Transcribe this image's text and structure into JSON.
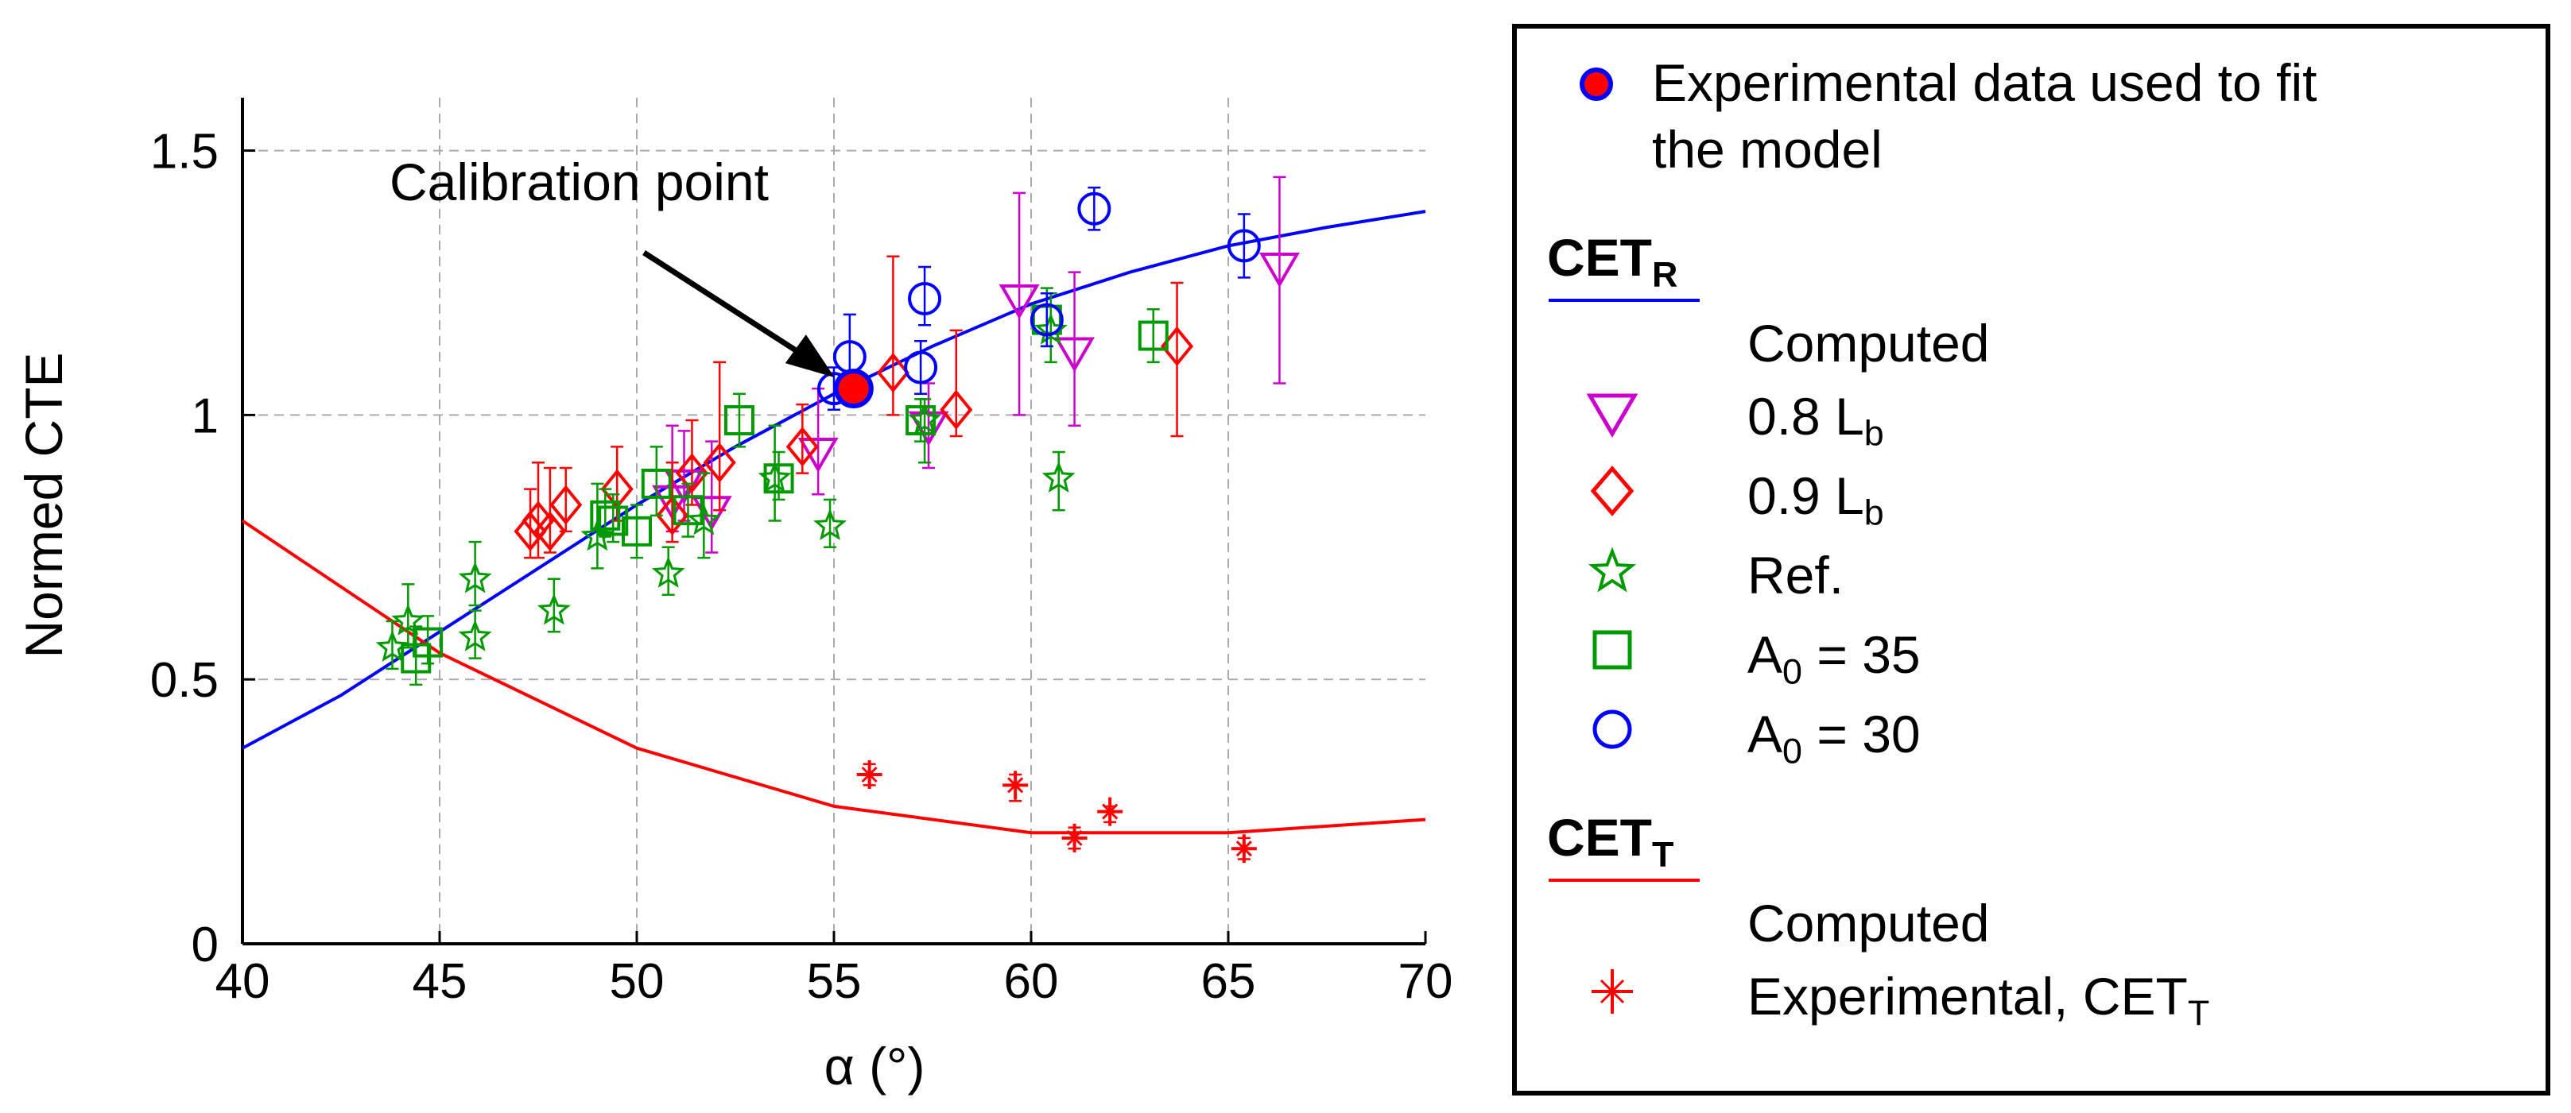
{
  "chart_data": {
    "type": "scatter",
    "xlabel": "α (°)",
    "ylabel": "Normed CTE",
    "xlim": [
      40,
      70
    ],
    "ylim": [
      0,
      1.6
    ],
    "xticks": [
      "40",
      "45",
      "50",
      "55",
      "60",
      "65",
      "70"
    ],
    "yticks": [
      "0",
      "0.5",
      "1",
      "1.5"
    ],
    "grid": true,
    "annotation": {
      "text": "Calibration point",
      "target": [
        55.5,
        1.05
      ]
    },
    "calibration_point": {
      "x": 55.5,
      "y": 1.05
    },
    "series": [
      {
        "name": "CET_R Computed",
        "kind": "line",
        "color": "#0000ff",
        "x": [
          40,
          42.5,
          45,
          47.5,
          50,
          52.5,
          55,
          57.5,
          60,
          62.5,
          65,
          67.5,
          70
        ],
        "y": [
          0.37,
          0.47,
          0.59,
          0.71,
          0.83,
          0.94,
          1.04,
          1.13,
          1.21,
          1.27,
          1.32,
          1.355,
          1.385
        ]
      },
      {
        "name": "CET_T Computed",
        "kind": "line",
        "color": "#ff0000",
        "x": [
          40,
          45,
          50,
          55,
          60,
          65,
          70
        ],
        "y": [
          0.8,
          0.55,
          0.37,
          0.26,
          0.21,
          0.21,
          0.235
        ]
      },
      {
        "name": "0.8 L_b",
        "marker": "triangle-down",
        "color": "#cc00cc",
        "points": [
          [
            50.9,
            0.84,
            0.06,
            0.14
          ],
          [
            51.2,
            0.87,
            0.07,
            0.1
          ],
          [
            51.9,
            0.82,
            0.08,
            0.13
          ],
          [
            54.6,
            0.93,
            0.08,
            0.12
          ],
          [
            57.4,
            0.98,
            0.08,
            0.08
          ],
          [
            59.7,
            1.22,
            0.22,
            0.2
          ],
          [
            61.1,
            1.12,
            0.14,
            0.15
          ],
          [
            66.3,
            1.28,
            0.22,
            0.17
          ]
        ]
      },
      {
        "name": "0.9 L_b",
        "marker": "diamond",
        "color": "#ff0000",
        "points": [
          [
            47.3,
            0.78,
            0.05,
            0.08
          ],
          [
            47.5,
            0.8,
            0.07,
            0.11
          ],
          [
            47.8,
            0.78,
            0.04,
            0.12
          ],
          [
            48.2,
            0.83,
            0.05,
            0.07
          ],
          [
            49.5,
            0.86,
            0.06,
            0.08
          ],
          [
            50.9,
            0.81,
            0.05,
            0.1
          ],
          [
            51.4,
            0.89,
            0.06,
            0.1
          ],
          [
            52.1,
            0.91,
            0.09,
            0.19
          ],
          [
            54.2,
            0.94,
            0.05,
            0.08
          ],
          [
            56.5,
            1.08,
            0.08,
            0.22
          ],
          [
            58.1,
            1.01,
            0.05,
            0.15
          ],
          [
            63.7,
            1.13,
            0.17,
            0.12
          ]
        ]
      },
      {
        "name": "Ref.",
        "marker": "star",
        "color": "#009900",
        "points": [
          [
            43.8,
            0.56,
            0.04,
            0.05
          ],
          [
            44.2,
            0.61,
            0.05,
            0.07
          ],
          [
            45.9,
            0.69,
            0.05,
            0.07
          ],
          [
            45.9,
            0.58,
            0.04,
            0.05
          ],
          [
            47.9,
            0.63,
            0.04,
            0.06
          ],
          [
            49.0,
            0.77,
            0.06,
            0.1
          ],
          [
            50.8,
            0.7,
            0.04,
            0.05
          ],
          [
            51.7,
            0.8,
            0.07,
            0.09
          ],
          [
            53.5,
            0.88,
            0.08,
            0.1
          ],
          [
            54.9,
            0.79,
            0.04,
            0.05
          ],
          [
            57.3,
            0.99,
            0.08,
            0.04
          ],
          [
            60.7,
            0.88,
            0.06,
            0.05
          ],
          [
            60.5,
            1.16,
            0.06,
            0.07
          ]
        ]
      },
      {
        "name": "A_0 = 35",
        "marker": "square",
        "color": "#009900",
        "points": [
          [
            44.4,
            0.54,
            0.05,
            0.06
          ],
          [
            44.7,
            0.57,
            0.04,
            0.05
          ],
          [
            49.2,
            0.81,
            0.04,
            0.05
          ],
          [
            49.4,
            0.8,
            0.04,
            0.05
          ],
          [
            50.0,
            0.78,
            0.05,
            0.05
          ],
          [
            50.5,
            0.87,
            0.06,
            0.07
          ],
          [
            51.3,
            0.82,
            0.05,
            0.05
          ],
          [
            52.6,
            0.99,
            0.05,
            0.05
          ],
          [
            53.6,
            0.88,
            0.04,
            0.05
          ],
          [
            57.2,
            0.99,
            0.04,
            0.04
          ],
          [
            60.4,
            1.18,
            0.05,
            0.06
          ],
          [
            63.1,
            1.15,
            0.05,
            0.05
          ]
        ]
      },
      {
        "name": "A_0 = 30",
        "marker": "circle",
        "color": "#0000ff",
        "points": [
          [
            55.0,
            1.05,
            0.04,
            0.04
          ],
          [
            55.4,
            1.11,
            0.06,
            0.08
          ],
          [
            57.2,
            1.09,
            0.05,
            0.05
          ],
          [
            57.3,
            1.22,
            0.05,
            0.06
          ],
          [
            60.4,
            1.18,
            0.05,
            0.05
          ],
          [
            61.6,
            1.39,
            0.04,
            0.04
          ],
          [
            65.4,
            1.32,
            0.06,
            0.06
          ]
        ]
      },
      {
        "name": "Experimental, CET_T",
        "marker": "plus-star",
        "color": "#ff0000",
        "points": [
          [
            55.9,
            0.32,
            0.02,
            0.02
          ],
          [
            59.6,
            0.3,
            0.03,
            0.02
          ],
          [
            61.1,
            0.2,
            0.02,
            0.02
          ],
          [
            62.0,
            0.25,
            0.02,
            0.01
          ],
          [
            65.4,
            0.18,
            0.02,
            0.02
          ]
        ]
      }
    ]
  },
  "legend": {
    "fit_label_1": "Experimental data used to fit",
    "fit_label_2": "the model",
    "cetr_head": "CET",
    "cetr_sub": "R",
    "cetr_computed": "Computed",
    "s08": "0.8  L",
    "s08_sub": "b",
    "s09": "0.9  L",
    "s09_sub": "b",
    "ref": "Ref.",
    "a35_pre": "A",
    "a35_sub": "0",
    "a35_post": " = 35",
    "a30_pre": "A",
    "a30_sub": "0",
    "a30_post": " = 30",
    "cett_head": "CET",
    "cett_sub": "T",
    "cett_computed": "Computed",
    "exp_t": "Experimental, CET",
    "exp_t_sub": "T"
  },
  "colors": {
    "blue": "#0000ff",
    "red": "#ff0000",
    "magenta": "#cc00cc",
    "green": "#009900"
  }
}
